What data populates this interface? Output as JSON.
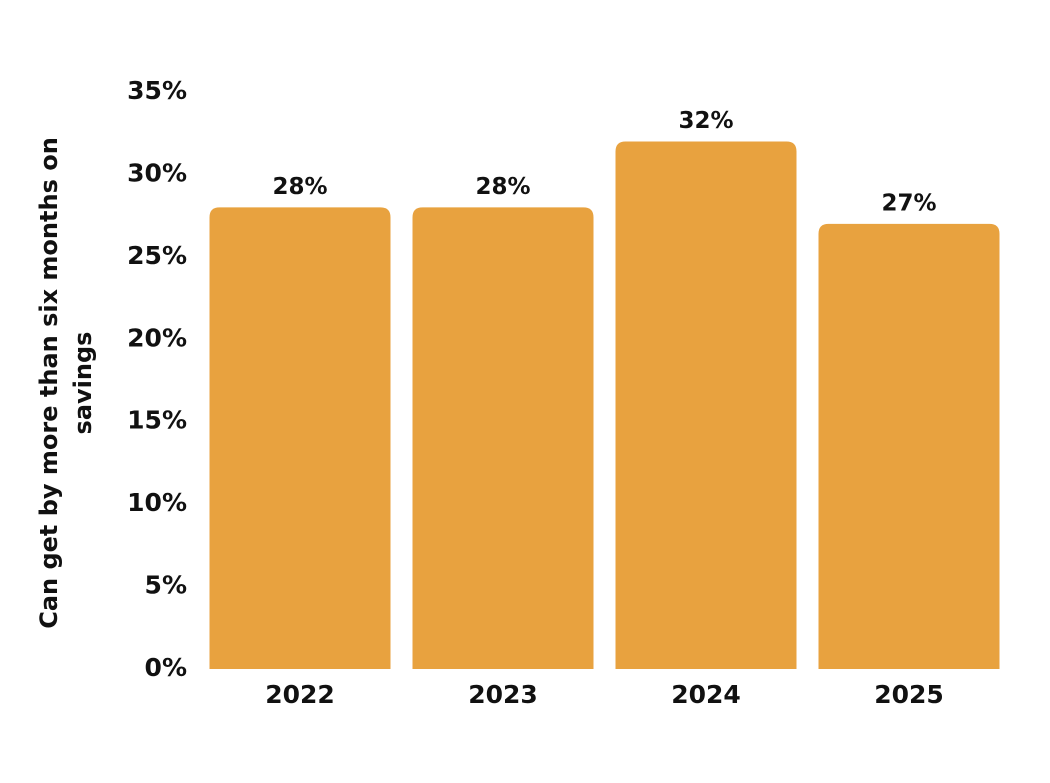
{
  "chart_data": {
    "type": "bar",
    "y_label": "Can get by more than six months on savings",
    "categories": [
      "2022",
      "2023",
      "2024",
      "2025"
    ],
    "values": [
      28,
      28,
      32,
      27
    ],
    "value_labels": [
      "28%",
      "28%",
      "32%",
      "27%"
    ],
    "color": "#e8a23f",
    "ylim": [
      0,
      35
    ],
    "yticks": [
      {
        "value": 0,
        "label": "0%"
      },
      {
        "value": 5,
        "label": "5%"
      },
      {
        "value": 10,
        "label": "10%"
      },
      {
        "value": 15,
        "label": "15%"
      },
      {
        "value": 20,
        "label": "20%"
      },
      {
        "value": 25,
        "label": "25%"
      },
      {
        "value": 30,
        "label": "30%"
      },
      {
        "value": 35,
        "label": "35%"
      }
    ],
    "grid": false
  }
}
